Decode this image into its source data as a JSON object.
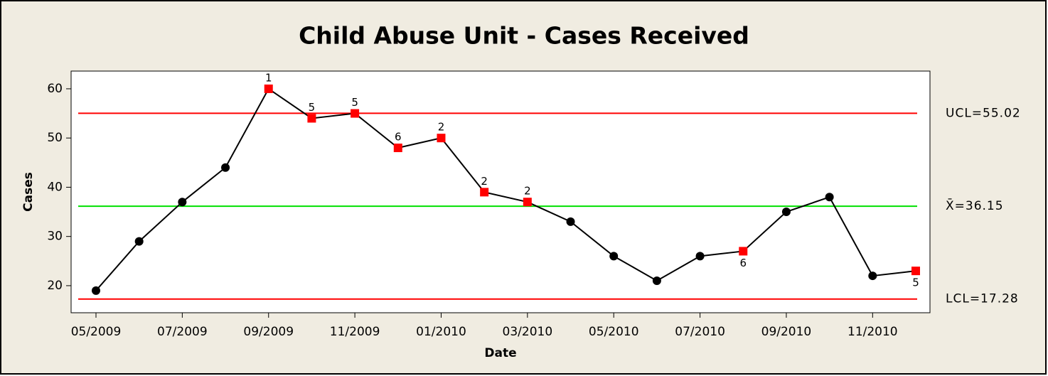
{
  "chart_data": {
    "type": "control",
    "title": "Child Abuse Unit  - Cases Received",
    "x_label": "Date",
    "y_label": "Cases",
    "categories": [
      "05/2009",
      null,
      "07/2009",
      null,
      "09/2009",
      null,
      "11/2009",
      null,
      "01/2010",
      null,
      "03/2010",
      null,
      "05/2010",
      null,
      "07/2010",
      null,
      "09/2010",
      null,
      "11/2010",
      null
    ],
    "values": [
      19,
      29,
      37,
      44,
      60,
      54,
      55,
      48,
      50,
      39,
      37,
      33,
      26,
      21,
      26,
      27,
      35,
      38,
      22,
      23
    ],
    "test_labels": [
      null,
      null,
      null,
      null,
      "1",
      "5",
      "5",
      "6",
      "2",
      "2",
      "2",
      null,
      null,
      null,
      null,
      "6",
      null,
      null,
      null,
      "5"
    ],
    "color": "#000000",
    "flag_color": "#ff0000",
    "control_lines": [
      {
        "label": "UCL=55.02",
        "value": 55.02,
        "color": "#ff0000"
      },
      {
        "label": "X̄=36.15",
        "value": 36.15,
        "color": "#00e000"
      },
      {
        "label": "LCL=17.28",
        "value": 17.28,
        "color": "#ff0000"
      }
    ],
    "ylim": [
      14.5,
      63.6
    ],
    "yticks": [
      20,
      30,
      40,
      50,
      60
    ]
  }
}
